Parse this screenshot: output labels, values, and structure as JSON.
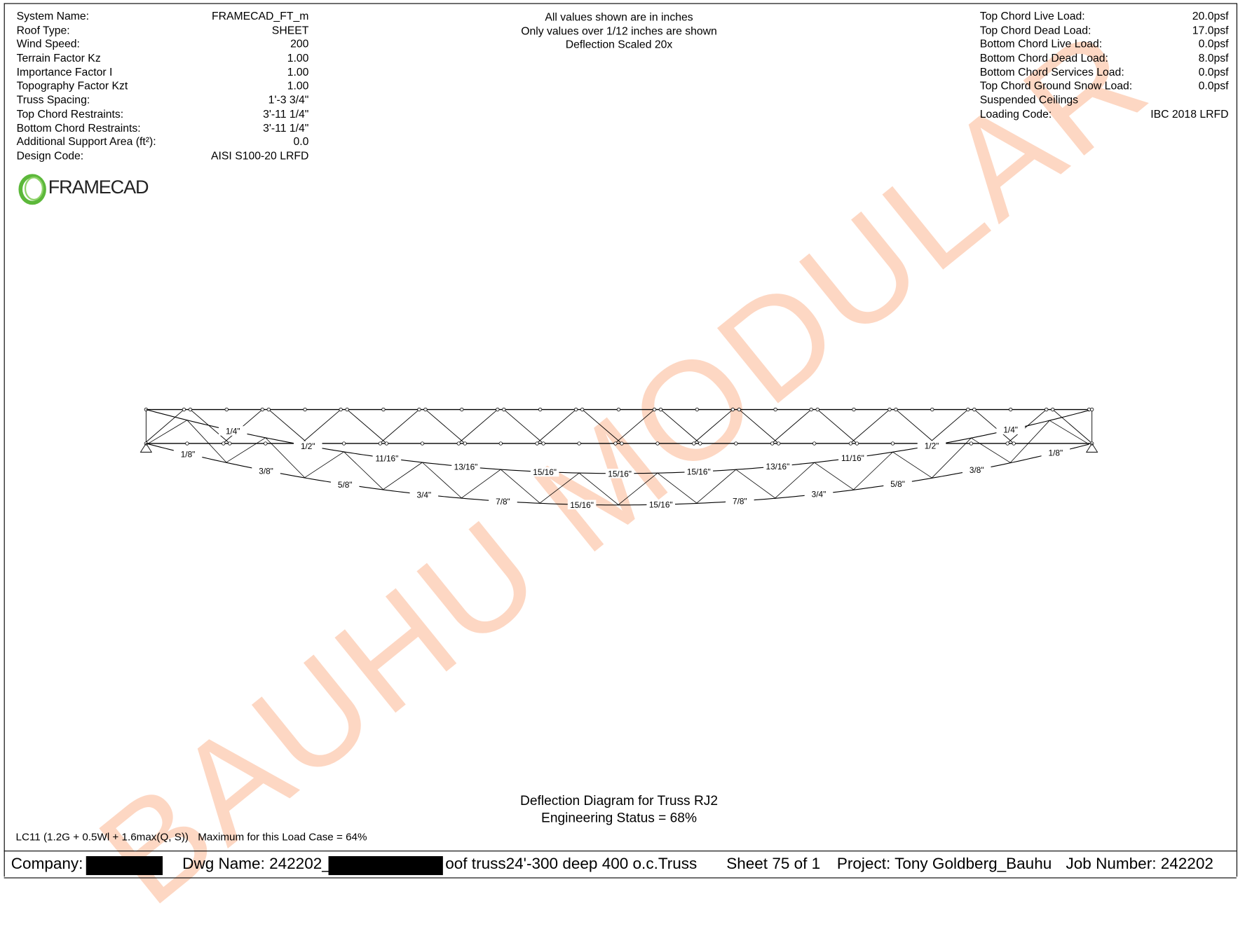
{
  "left_info": [
    {
      "label": "System Name:",
      "value": "FRAMECAD_FT_m"
    },
    {
      "label": "Roof Type:",
      "value": "SHEET"
    },
    {
      "label": "Wind Speed:",
      "value": "200"
    },
    {
      "label": "Terrain Factor Kz",
      "value": "1.00"
    },
    {
      "label": "Importance Factor I",
      "value": "1.00"
    },
    {
      "label": "Topography Factor Kzt",
      "value": "1.00"
    },
    {
      "label": "Truss Spacing:",
      "value": "1'-3 3/4\""
    },
    {
      "label": "Top Chord Restraints:",
      "value": "3'-11 1/4\""
    },
    {
      "label": "Bottom Chord Restraints:",
      "value": "3'-11 1/4\""
    },
    {
      "label": "Additional Support Area (ft²):",
      "value": "0.0"
    },
    {
      "label": "Design Code:",
      "value": "AISI S100-20 LRFD"
    }
  ],
  "logo": {
    "text": "FRAMECAD",
    "color": "#5cb83a"
  },
  "notes": [
    "All values shown are in inches",
    "Only values over 1/12 inches are shown",
    "Deflection Scaled 20x"
  ],
  "right_info": [
    {
      "label": "Top Chord Live Load:",
      "value": "20.0psf"
    },
    {
      "label": "Top Chord Dead Load:",
      "value": "17.0psf"
    },
    {
      "label": "Bottom Chord Live Load:",
      "value": "0.0psf"
    },
    {
      "label": "Bottom Chord Dead Load:",
      "value": "8.0psf"
    },
    {
      "label": "Bottom Chord Services Load:",
      "value": "0.0psf"
    },
    {
      "label": "Top Chord Ground Snow Load:",
      "value": "0.0psf"
    },
    {
      "label": "Suspended Ceilings",
      "value": ""
    },
    {
      "label": "Loading Code:",
      "value": "IBC 2018 LRFD"
    }
  ],
  "watermark": {
    "text": "BAUHU MODULAR",
    "color": "#fdd3bd"
  },
  "diagram": {
    "top_chord_labels": [
      "1/4\"",
      "1/2\"",
      "11/16\"",
      "13/16\"",
      "15/16\"",
      "15/16\"",
      "15/16\"",
      "13/16\"",
      "11/16\"",
      "1/2\"",
      "1/4\""
    ],
    "bottom_chord_labels": [
      "1/8\"",
      "3/8\"",
      "5/8\"",
      "3/4\"",
      "7/8\"",
      "15/16\"",
      "15/16\"",
      "7/8\"",
      "3/4\"",
      "5/8\"",
      "3/8\"",
      "1/8\""
    ]
  },
  "title": "Deflection Diagram for Truss RJ2",
  "status": "Engineering Status = 68%",
  "load_case": "LC11 (1.2G + 0.5Wl + 1.6max(Q, S))",
  "load_case_max": "Maximum for this Load Case = 64%",
  "footer": {
    "company_label": "Company:",
    "dwg_label": "Dwg Name: 242202_",
    "dwg_suffix": "oof truss24'-300 deep 400 o.c.Truss",
    "sheet": "Sheet 75 of 1",
    "project": "Project: Tony Goldberg_Bauhu",
    "job": "Job Number: 242202"
  }
}
